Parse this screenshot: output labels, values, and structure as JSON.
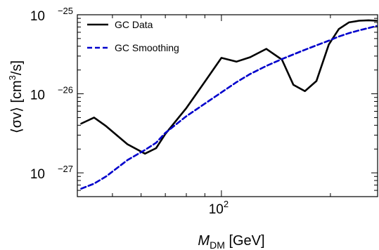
{
  "chart_data": {
    "type": "line",
    "xscale": "log",
    "yscale": "log",
    "xlim": [
      40,
      270
    ],
    "ylim": [
      5e-28,
      1e-25
    ],
    "xlabel": {
      "main": "M",
      "sub": "DM",
      "unit": "[GeV]"
    },
    "ylabel": {
      "pre": "⟨σv⟩ [cm",
      "sup": "3",
      "post": "/s]"
    },
    "x_ticks": [
      {
        "value": 100,
        "base": "10",
        "exp": "2"
      }
    ],
    "y_ticks": [
      {
        "value": 1e-25,
        "base": "10",
        "exp": "−25"
      },
      {
        "value": 1e-26,
        "base": "10",
        "exp": "−26"
      },
      {
        "value": 1e-27,
        "base": "10",
        "exp": "−27"
      }
    ],
    "legend_position": "top-left",
    "series": [
      {
        "name": "GC Data",
        "color": "#000000",
        "dash": "solid",
        "x": [
          41,
          44.5,
          48,
          55,
          61.5,
          66,
          70,
          80,
          90,
          100,
          110,
          120,
          133,
          147,
          158,
          170,
          183,
          198,
          211,
          225,
          240,
          255,
          268
        ],
        "y": [
          4.2e-27,
          5e-27,
          3.9e-27,
          2.3e-27,
          1.75e-27,
          2.05e-27,
          3.1e-27,
          6.6e-27,
          1.42e-26,
          2.85e-26,
          2.55e-26,
          2.9e-26,
          3.7e-26,
          2.7e-26,
          1.3e-26,
          1.08e-26,
          1.45e-26,
          4.2e-26,
          6.6e-26,
          8e-26,
          8.4e-26,
          8.5e-26,
          8.4e-26
        ]
      },
      {
        "name": "GC Smoothing",
        "color": "#0000cc",
        "dash": "dashed",
        "x": [
          41,
          44.5,
          48,
          55,
          61.5,
          66,
          70,
          80,
          90,
          100,
          110,
          120,
          133,
          147,
          158,
          170,
          183,
          198,
          211,
          225,
          240,
          255,
          268
        ],
        "y": [
          6.3e-28,
          7.3e-28,
          9e-28,
          1.45e-27,
          1.95e-27,
          2.4e-27,
          3.2e-27,
          5.2e-27,
          7.5e-27,
          1.04e-26,
          1.4e-26,
          1.78e-26,
          2.25e-26,
          2.75e-26,
          3.15e-26,
          3.6e-26,
          4.1e-26,
          4.7e-26,
          5.3e-26,
          5.85e-26,
          6.35e-26,
          6.8e-26,
          7.2e-26
        ]
      }
    ]
  }
}
